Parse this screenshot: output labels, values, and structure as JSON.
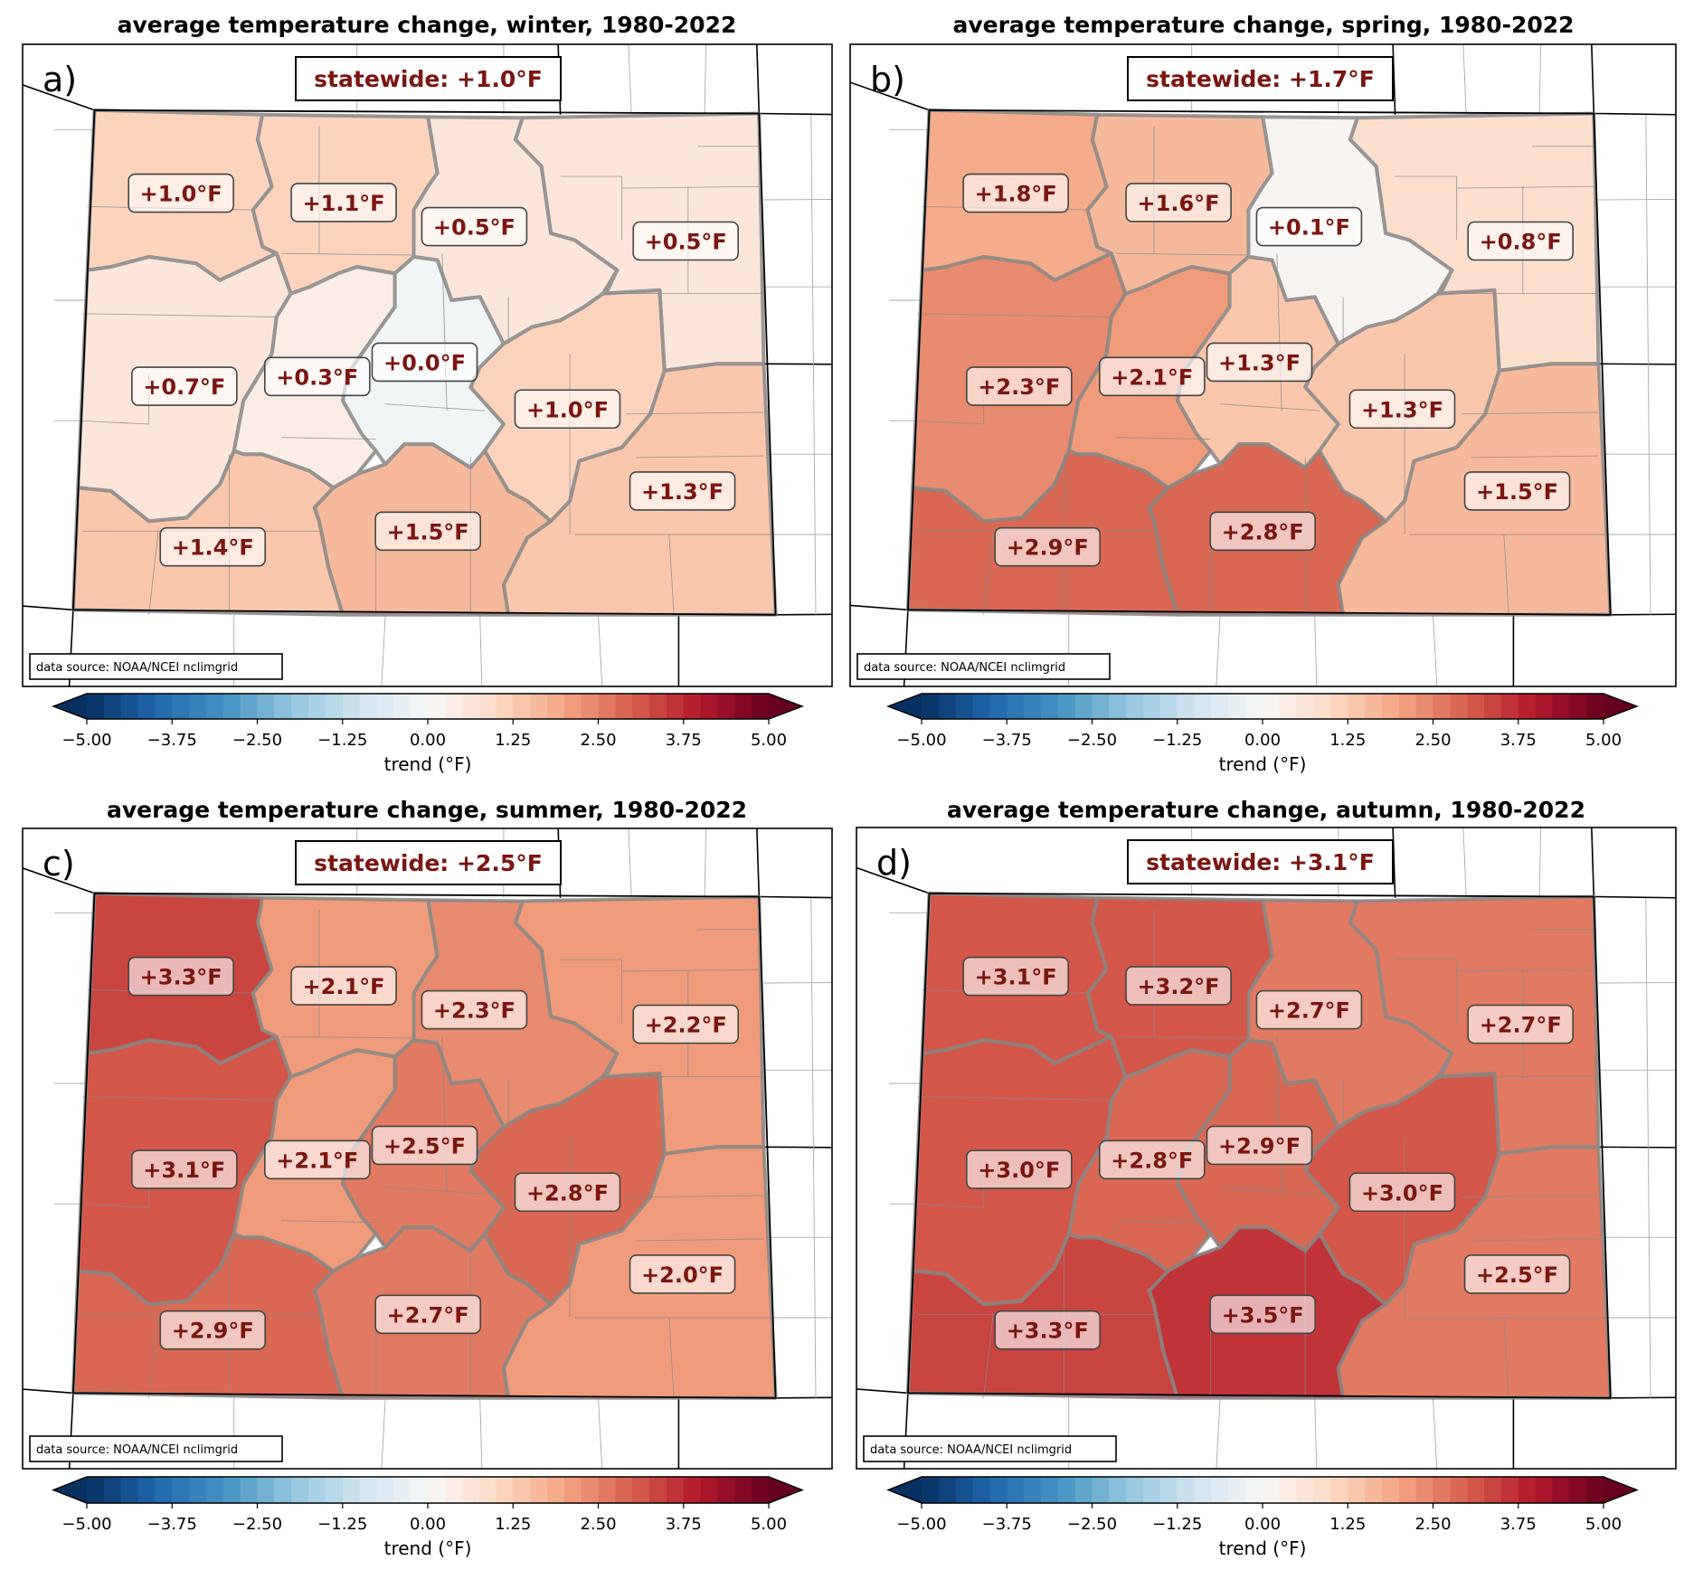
{
  "chart_data": [
    {
      "type": "heatmap",
      "panel_letter": "a)",
      "title": "average temperature change, winter, 1980-2022",
      "season": "winter",
      "statewide": "statewide: +1.0°F",
      "statewide_value": 1.0,
      "source_note": "data source: NOAA/NCEI nclimgrid",
      "regions": [
        {
          "division": "northwest",
          "value": 1.0,
          "label": "+1.0°F"
        },
        {
          "division": "north-central",
          "value": 1.1,
          "label": "+1.1°F"
        },
        {
          "division": "northern-front-range",
          "value": 0.5,
          "label": "+0.5°F"
        },
        {
          "division": "northeast-plains",
          "value": 0.5,
          "label": "+0.5°F"
        },
        {
          "division": "west",
          "value": 0.7,
          "label": "+0.7°F"
        },
        {
          "division": "central-west",
          "value": 0.3,
          "label": "+0.3°F"
        },
        {
          "division": "central-mountains",
          "value": 0.0,
          "label": "+0.0°F"
        },
        {
          "division": "southern-front-range",
          "value": 1.0,
          "label": "+1.0°F"
        },
        {
          "division": "southeast-plains",
          "value": 1.3,
          "label": "+1.3°F"
        },
        {
          "division": "south-central",
          "value": 1.5,
          "label": "+1.5°F"
        },
        {
          "division": "southwest",
          "value": 1.4,
          "label": "+1.4°F"
        }
      ]
    },
    {
      "type": "heatmap",
      "panel_letter": "b)",
      "title": "average temperature change, spring, 1980-2022",
      "season": "spring",
      "statewide": "statewide: +1.7°F",
      "statewide_value": 1.7,
      "source_note": "data source: NOAA/NCEI nclimgrid",
      "regions": [
        {
          "division": "northwest",
          "value": 1.8,
          "label": "+1.8°F"
        },
        {
          "division": "north-central",
          "value": 1.6,
          "label": "+1.6°F"
        },
        {
          "division": "northern-front-range",
          "value": 0.1,
          "label": "+0.1°F"
        },
        {
          "division": "northeast-plains",
          "value": 0.8,
          "label": "+0.8°F"
        },
        {
          "division": "west",
          "value": 2.3,
          "label": "+2.3°F"
        },
        {
          "division": "central-west",
          "value": 2.1,
          "label": "+2.1°F"
        },
        {
          "division": "central-mountains",
          "value": 1.3,
          "label": "+1.3°F"
        },
        {
          "division": "southern-front-range",
          "value": 1.3,
          "label": "+1.3°F"
        },
        {
          "division": "southeast-plains",
          "value": 1.5,
          "label": "+1.5°F"
        },
        {
          "division": "south-central",
          "value": 2.8,
          "label": "+2.8°F"
        },
        {
          "division": "southwest",
          "value": 2.9,
          "label": "+2.9°F"
        }
      ]
    },
    {
      "type": "heatmap",
      "panel_letter": "c)",
      "title": "average temperature change, summer, 1980-2022",
      "season": "summer",
      "statewide": "statewide: +2.5°F",
      "statewide_value": 2.5,
      "source_note": "data source: NOAA/NCEI nclimgrid",
      "regions": [
        {
          "division": "northwest",
          "value": 3.3,
          "label": "+3.3°F"
        },
        {
          "division": "north-central",
          "value": 2.1,
          "label": "+2.1°F"
        },
        {
          "division": "northern-front-range",
          "value": 2.3,
          "label": "+2.3°F"
        },
        {
          "division": "northeast-plains",
          "value": 2.2,
          "label": "+2.2°F"
        },
        {
          "division": "west",
          "value": 3.1,
          "label": "+3.1°F"
        },
        {
          "division": "central-west",
          "value": 2.1,
          "label": "+2.1°F"
        },
        {
          "division": "central-mountains",
          "value": 2.5,
          "label": "+2.5°F"
        },
        {
          "division": "southern-front-range",
          "value": 2.8,
          "label": "+2.8°F"
        },
        {
          "division": "southeast-plains",
          "value": 2.0,
          "label": "+2.0°F"
        },
        {
          "division": "south-central",
          "value": 2.7,
          "label": "+2.7°F"
        },
        {
          "division": "southwest",
          "value": 2.9,
          "label": "+2.9°F"
        }
      ]
    },
    {
      "type": "heatmap",
      "panel_letter": "d)",
      "title": "average temperature change, autumn, 1980-2022",
      "season": "autumn",
      "statewide": "statewide: +3.1°F",
      "statewide_value": 3.1,
      "source_note": "data source: NOAA/NCEI nclimgrid",
      "regions": [
        {
          "division": "northwest",
          "value": 3.1,
          "label": "+3.1°F"
        },
        {
          "division": "north-central",
          "value": 3.2,
          "label": "+3.2°F"
        },
        {
          "division": "northern-front-range",
          "value": 2.7,
          "label": "+2.7°F"
        },
        {
          "division": "northeast-plains",
          "value": 2.7,
          "label": "+2.7°F"
        },
        {
          "division": "west",
          "value": 3.0,
          "label": "+3.0°F"
        },
        {
          "division": "central-west",
          "value": 2.8,
          "label": "+2.8°F"
        },
        {
          "division": "central-mountains",
          "value": 2.9,
          "label": "+2.9°F"
        },
        {
          "division": "southern-front-range",
          "value": 3.0,
          "label": "+3.0°F"
        },
        {
          "division": "southeast-plains",
          "value": 2.5,
          "label": "+2.5°F"
        },
        {
          "division": "south-central",
          "value": 3.5,
          "label": "+3.5°F"
        },
        {
          "division": "southwest",
          "value": 3.3,
          "label": "+3.3°F"
        }
      ]
    }
  ],
  "colorbar": {
    "label": "trend (°F)",
    "range": [
      -5.0,
      5.0
    ],
    "levels": 40,
    "extend": "both",
    "colormap": "RdBu_r",
    "ticks": [
      -5.0,
      -3.75,
      -2.5,
      -1.25,
      0.0,
      1.25,
      2.5,
      3.75,
      5.0
    ],
    "tick_labels": [
      "−5.00",
      "−3.75",
      "−2.50",
      "−1.25",
      "0.00",
      "1.25",
      "2.50",
      "3.75",
      "5.00"
    ]
  },
  "colors": {
    "label_text": "#7b1510",
    "division_border": "#8a8a8a",
    "county_line": "#8a8a8a",
    "state_line": "#000000"
  }
}
